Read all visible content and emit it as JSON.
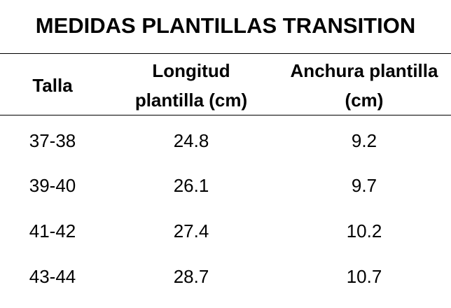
{
  "title": "MEDIDAS PLANTILLAS TRANSITION",
  "table": {
    "headers": [
      {
        "line1": "Talla"
      },
      {
        "line1": "Longitud",
        "line2": "plantilla (cm)"
      },
      {
        "line1": "Anchura plantilla",
        "line2": "(cm)"
      }
    ],
    "rows": [
      [
        "37-38",
        "24.8",
        "9.2"
      ],
      [
        "39-40",
        "26.1",
        "9.7"
      ],
      [
        "41-42",
        "27.4",
        "10.2"
      ],
      [
        "43-44",
        "28.7",
        "10.7"
      ]
    ]
  }
}
